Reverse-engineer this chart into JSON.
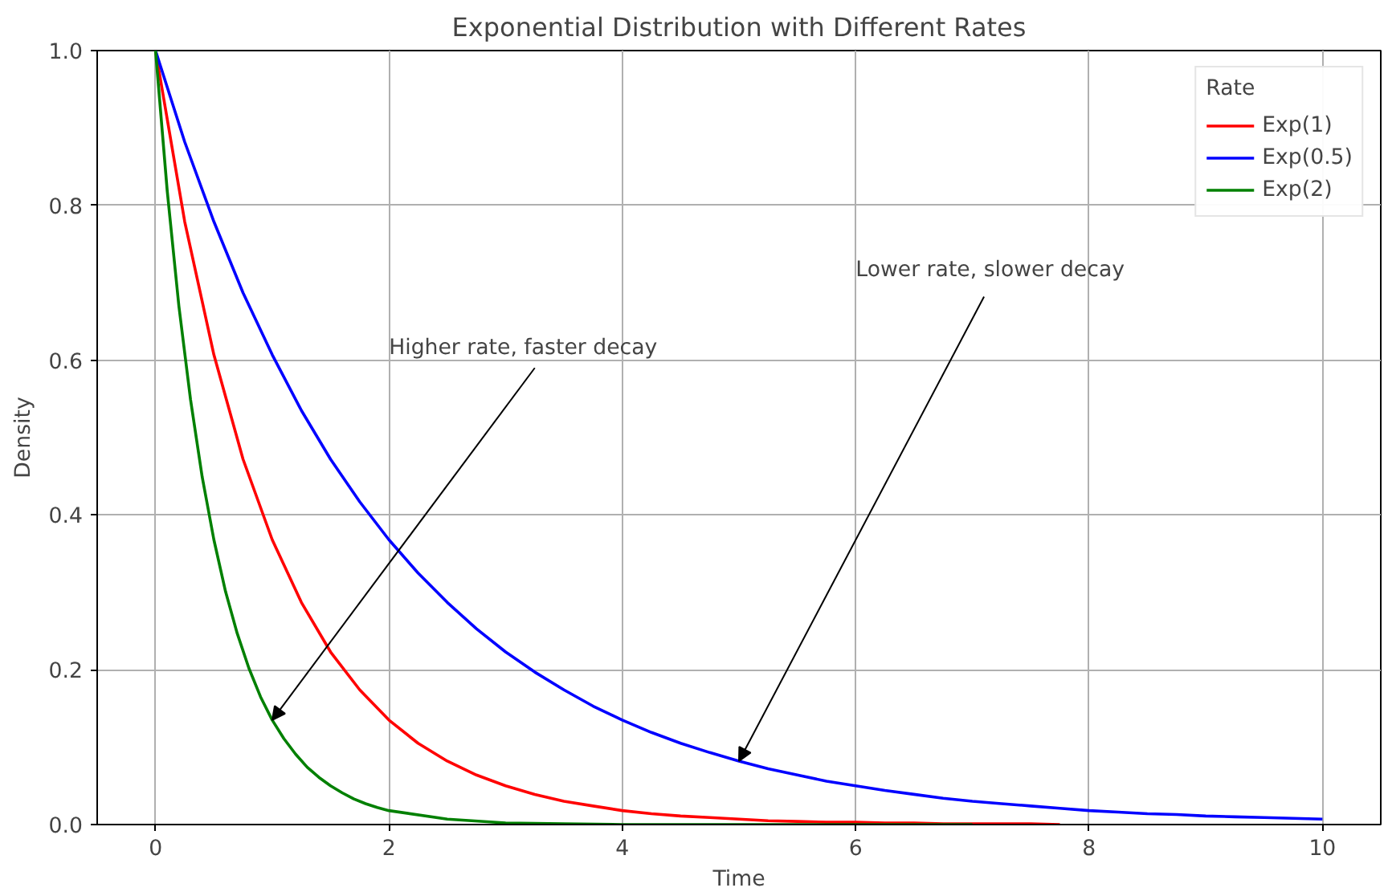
{
  "chart_data": {
    "type": "line",
    "title": "Exponential Distribution with Different Rates",
    "xlabel": "Time",
    "ylabel": "Density",
    "legend_title": "Rate",
    "legend": "top right",
    "grid": true,
    "line_style": "solid",
    "xlim": [
      -0.5,
      10.5
    ],
    "ylim": [
      0,
      1
    ],
    "xticks": [
      0,
      2,
      4,
      6,
      8,
      10
    ],
    "yticks": [
      {
        "value": 0,
        "label": "0.0"
      },
      {
        "value": 0.2,
        "label": "0.2"
      },
      {
        "value": 0.4,
        "label": "0.4"
      },
      {
        "value": 0.6,
        "label": "0.6"
      },
      {
        "value": 0.8,
        "label": "0.8"
      },
      {
        "value": 1,
        "label": "1.0"
      }
    ],
    "x": [
      0,
      0.25,
      0.5,
      0.75,
      1,
      1.25,
      1.5,
      1.75,
      2,
      2.25,
      2.5,
      2.75,
      3,
      3.25,
      3.5,
      3.75,
      4,
      4.25,
      4.5,
      4.75,
      5,
      5.25,
      5.5,
      5.75,
      6,
      6.25,
      6.5,
      6.75,
      7,
      7.25,
      7.5,
      7.75,
      8,
      8.25,
      8.5,
      8.75,
      9,
      9.25,
      9.5,
      9.75,
      10
    ],
    "series": [
      {
        "name": "Exp(1)",
        "color": "#ff0000",
        "x": [
          0,
          0.25,
          0.5,
          0.75,
          1,
          1.25,
          1.5,
          1.75,
          2,
          2.25,
          2.5,
          2.75,
          3,
          3.25,
          3.5,
          3.75,
          4,
          4.25,
          4.5,
          4.75,
          5,
          5.25,
          5.5,
          5.75,
          6,
          6.25,
          6.5,
          6.75,
          7,
          7.25,
          7.5,
          7.75
        ],
        "values": [
          1,
          0.779,
          0.607,
          0.472,
          0.368,
          0.287,
          0.223,
          0.174,
          0.135,
          0.105,
          0.082,
          0.064,
          0.05,
          0.039,
          0.03,
          0.024,
          0.018,
          0.014,
          0.011,
          0.009,
          0.007,
          0.005,
          0.004,
          0.003,
          0.003,
          0.002,
          0.002,
          0.001,
          0.001,
          0.001,
          0.001,
          0
        ]
      },
      {
        "name": "Exp(0.5)",
        "color": "#0000ff",
        "values": [
          1,
          0.882,
          0.779,
          0.687,
          0.607,
          0.535,
          0.472,
          0.417,
          0.368,
          0.325,
          0.287,
          0.253,
          0.223,
          0.197,
          0.174,
          0.153,
          0.135,
          0.119,
          0.105,
          0.093,
          0.082,
          0.072,
          0.064,
          0.056,
          0.05,
          0.044,
          0.039,
          0.034,
          0.03,
          0.027,
          0.024,
          0.021,
          0.018,
          0.016,
          0.014,
          0.013,
          0.011,
          0.01,
          0.009,
          0.008,
          0.007
        ]
      },
      {
        "name": "Exp(2)",
        "color": "#008000",
        "x": [
          0,
          0.1,
          0.2,
          0.3,
          0.4,
          0.5,
          0.6,
          0.7,
          0.8,
          0.9,
          1,
          1.1,
          1.2,
          1.3,
          1.4,
          1.5,
          1.6,
          1.7,
          1.8,
          1.9,
          2,
          2.5,
          3,
          3.5,
          4,
          5,
          6,
          7
        ],
        "values": [
          1,
          0.819,
          0.67,
          0.549,
          0.449,
          0.368,
          0.301,
          0.247,
          0.202,
          0.165,
          0.135,
          0.111,
          0.091,
          0.074,
          0.061,
          0.05,
          0.041,
          0.033,
          0.027,
          0.022,
          0.018,
          0.007,
          0.002,
          0.001,
          0,
          0,
          0,
          0
        ]
      }
    ],
    "annotations": [
      {
        "text": "Higher rate, faster decay",
        "x": 1,
        "y": 0.135
      },
      {
        "text": "Lower rate, slower decay",
        "x": 5,
        "y": 0.082
      }
    ]
  }
}
